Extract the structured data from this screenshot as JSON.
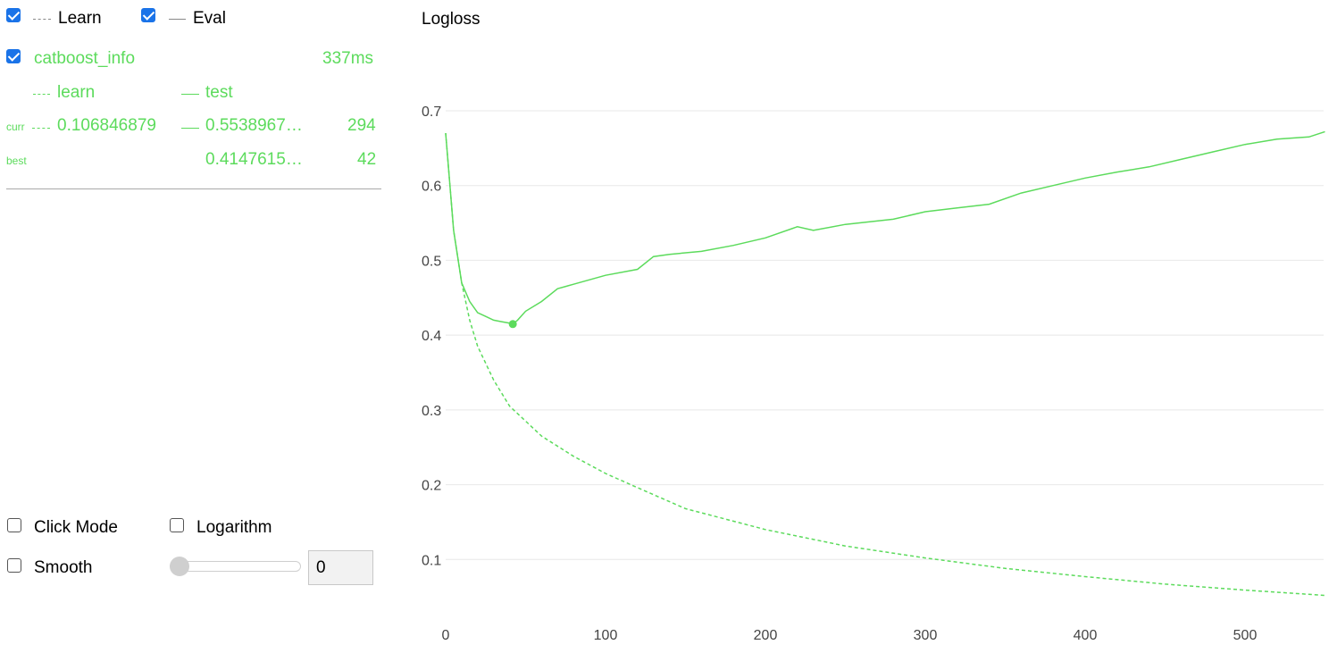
{
  "legend": {
    "learn_label": "Learn",
    "eval_label": "Eval",
    "learn_checked": true,
    "eval_checked": true
  },
  "run": {
    "name": "catboost_info",
    "time": "337ms",
    "checked": true,
    "col_learn": "learn",
    "col_test": "test",
    "curr_label": "curr",
    "curr_learn": "0.106846879",
    "curr_test": "0.5538967…",
    "curr_iter": "294",
    "best_label": "best",
    "best_test": "0.4147615…",
    "best_iter": "42"
  },
  "controls": {
    "click_mode_label": "Click Mode",
    "logarithm_label": "Logarithm",
    "smooth_label": "Smooth",
    "smooth_value": "0",
    "smooth_slider_level": 0
  },
  "colors": {
    "series": "#5cdb5c",
    "checkbox": "#1a73e8"
  },
  "chart_data": {
    "type": "line",
    "title": "Logloss",
    "xlabel": "",
    "ylabel": "",
    "xlim": [
      0,
      550
    ],
    "ylim": [
      0.05,
      0.7
    ],
    "x_ticks": [
      "0",
      "100",
      "200",
      "300",
      "400",
      "500"
    ],
    "y_ticks": [
      "0.1",
      "0.2",
      "0.3",
      "0.4",
      "0.5",
      "0.6",
      "0.7"
    ],
    "grid": "horizontal",
    "series": [
      {
        "name": "learn",
        "style": "dashed",
        "x": [
          0,
          5,
          10,
          15,
          20,
          30,
          40,
          50,
          60,
          80,
          100,
          120,
          150,
          200,
          250,
          300,
          350,
          400,
          450,
          500,
          550
        ],
        "values": [
          0.67,
          0.54,
          0.47,
          0.42,
          0.385,
          0.34,
          0.305,
          0.285,
          0.265,
          0.238,
          0.215,
          0.196,
          0.168,
          0.14,
          0.118,
          0.102,
          0.088,
          0.077,
          0.067,
          0.059,
          0.052
        ]
      },
      {
        "name": "test",
        "style": "solid",
        "x": [
          0,
          5,
          10,
          15,
          20,
          25,
          30,
          35,
          40,
          42,
          45,
          50,
          60,
          70,
          80,
          100,
          120,
          130,
          140,
          160,
          180,
          200,
          220,
          230,
          250,
          280,
          300,
          320,
          340,
          360,
          380,
          400,
          420,
          440,
          460,
          480,
          500,
          520,
          540,
          550
        ],
        "values": [
          0.67,
          0.54,
          0.47,
          0.445,
          0.43,
          0.425,
          0.42,
          0.418,
          0.416,
          0.4147615,
          0.42,
          0.432,
          0.445,
          0.462,
          0.468,
          0.48,
          0.488,
          0.505,
          0.508,
          0.512,
          0.52,
          0.53,
          0.545,
          0.54,
          0.548,
          0.555,
          0.565,
          0.57,
          0.575,
          0.59,
          0.6,
          0.61,
          0.618,
          0.625,
          0.635,
          0.645,
          0.655,
          0.662,
          0.665,
          0.672
        ]
      }
    ],
    "best_point": {
      "x": 42,
      "y": 0.4147615
    }
  }
}
